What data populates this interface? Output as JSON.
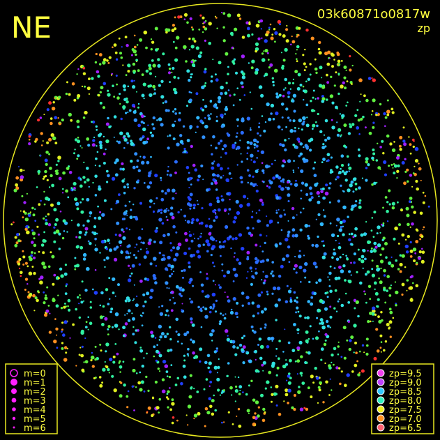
{
  "header": {
    "direction": "NE",
    "title": "03k60871o0817w",
    "subtitle": "zp"
  },
  "legend_m": [
    "m=0",
    "m=1",
    "m=2",
    "m=3",
    "m=4",
    "m=5",
    "m=6"
  ],
  "legend_zp": [
    "zp=9.5",
    "zp=9.0",
    "zp=8.5",
    "zp=8.0",
    "zp=7.5",
    "zp=7.0",
    "zp=6.5"
  ]
}
